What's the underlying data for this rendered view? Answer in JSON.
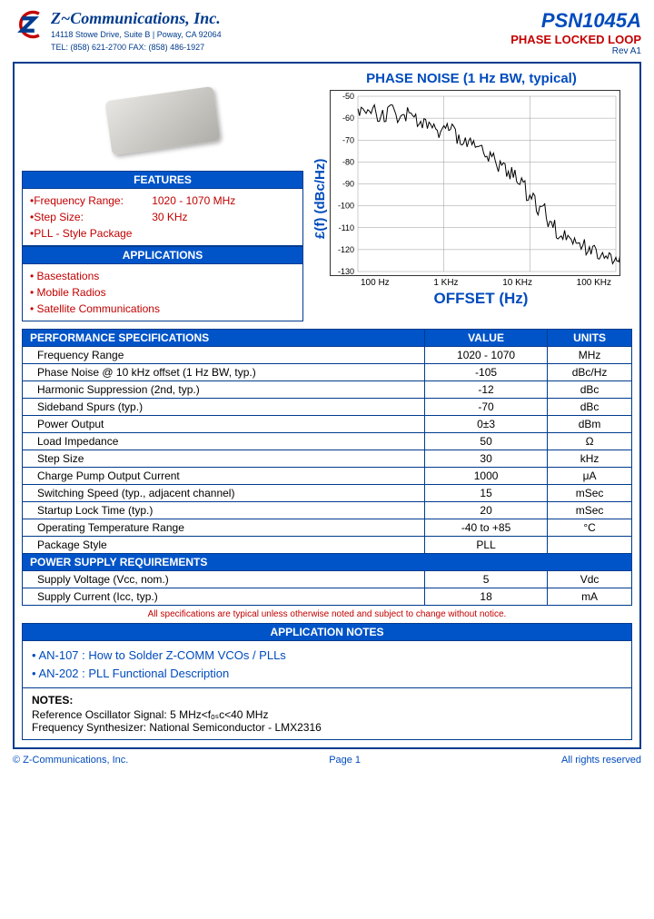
{
  "header": {
    "company": "Z~Communications, Inc.",
    "addr1": "14118 Stowe Drive, Suite B | Poway, CA 92064",
    "addr2": "TEL: (858) 621-2700   FAX: (858) 486-1927",
    "part": "PSN1045A",
    "subtitle": "PHASE LOCKED LOOP",
    "rev": "Rev  A1"
  },
  "features": {
    "title": "FEATURES",
    "items": [
      {
        "label": "Frequency Range:",
        "value": "1020 - 1070 MHz"
      },
      {
        "label": "Step Size:",
        "value": "30  KHz"
      },
      {
        "label": "PLL - Style Package",
        "value": ""
      }
    ]
  },
  "applications": {
    "title": "APPLICATIONS",
    "items": [
      "Basestations",
      "Mobile Radios",
      "Satellite Communications"
    ]
  },
  "chart": {
    "title": "PHASE NOISE (1 Hz BW, typical)",
    "ylabel": "£(f) (dBc/Hz)",
    "xlabel": "OFFSET (Hz)",
    "yticks": [
      "-50",
      "-60",
      "-70",
      "-80",
      "-90",
      "-100",
      "-110",
      "-120",
      "-130"
    ],
    "ymin": -130,
    "ymax": -50,
    "xticks": [
      "100 Hz",
      "1 KHz",
      "10 KHz",
      "100 KHz"
    ],
    "points": [
      [
        0.0,
        -58
      ],
      [
        0.05,
        -55
      ],
      [
        0.1,
        -59
      ],
      [
        0.15,
        -56
      ],
      [
        0.2,
        -60
      ],
      [
        0.25,
        -58
      ],
      [
        0.3,
        -63
      ],
      [
        0.35,
        -62
      ],
      [
        0.4,
        -66
      ],
      [
        0.45,
        -65
      ],
      [
        0.5,
        -70
      ],
      [
        0.55,
        -72
      ],
      [
        0.6,
        -75
      ],
      [
        0.65,
        -78
      ],
      [
        0.7,
        -82
      ],
      [
        0.75,
        -85
      ],
      [
        0.8,
        -90
      ],
      [
        0.85,
        -95
      ],
      [
        0.9,
        -102
      ],
      [
        0.95,
        -108
      ],
      [
        1.0,
        -113
      ],
      [
        1.05,
        -115
      ],
      [
        1.1,
        -118
      ],
      [
        1.15,
        -120
      ],
      [
        1.2,
        -122
      ],
      [
        1.25,
        -124
      ],
      [
        1.3,
        -125
      ]
    ],
    "noise_amp": 3,
    "line_color": "#000",
    "grid_color": "#999"
  },
  "specs": {
    "header": {
      "name": "PERFORMANCE SPECIFICATIONS",
      "val": "VALUE",
      "unit": "UNITS"
    },
    "rows": [
      {
        "name": "Frequency Range",
        "val": "1020 - 1070",
        "unit": "MHz"
      },
      {
        "name": "Phase Noise @ 10 kHz offset (1 Hz BW, typ.)",
        "val": "-105",
        "unit": "dBc/Hz"
      },
      {
        "name": "Harmonic Suppression (2nd, typ.)",
        "val": "-12",
        "unit": "dBc"
      },
      {
        "name": "Sideband Spurs (typ.)",
        "val": "-70",
        "unit": "dBc"
      },
      {
        "name": "Power Output",
        "val": "0±3",
        "unit": "dBm"
      },
      {
        "name": "Load Impedance",
        "val": "50",
        "unit": "Ω"
      },
      {
        "name": "Step Size",
        "val": "30",
        "unit": "kHz"
      },
      {
        "name": "Charge Pump Output Current",
        "val": "1000",
        "unit": "μA"
      },
      {
        "name": "Switching Speed (typ., adjacent channel)",
        "val": "15",
        "unit": "mSec"
      },
      {
        "name": "Startup Lock Time (typ.)",
        "val": "20",
        "unit": "mSec"
      },
      {
        "name": "Operating Temperature Range",
        "val": "-40 to +85",
        "unit": "°C"
      },
      {
        "name": "Package Style",
        "val": "PLL",
        "unit": ""
      }
    ],
    "power_header": "POWER SUPPLY REQUIREMENTS",
    "power_rows": [
      {
        "name": "Supply Voltage (Vcc, nom.)",
        "val": "5",
        "unit": "Vdc"
      },
      {
        "name": "Supply Current (Icc, typ.)",
        "val": "18",
        "unit": "mA"
      }
    ]
  },
  "disclaimer": "All specifications are typical unless otherwise noted and subject to change without notice.",
  "appnotes": {
    "title": "APPLICATION NOTES",
    "items": [
      "AN-107 : How to Solder Z-COMM VCOs / PLLs",
      "AN-202 : PLL Functional Description"
    ]
  },
  "notes": {
    "title": "NOTES:",
    "lines": [
      "Reference Oscillator Signal:  5 MHz<fₒₛc<40 MHz",
      "Frequency Synthesizer:  National Semiconductor  - LMX2316"
    ]
  },
  "footer": {
    "left": "© Z-Communications, Inc.",
    "center": "Page 1",
    "right": "All rights reserved"
  }
}
